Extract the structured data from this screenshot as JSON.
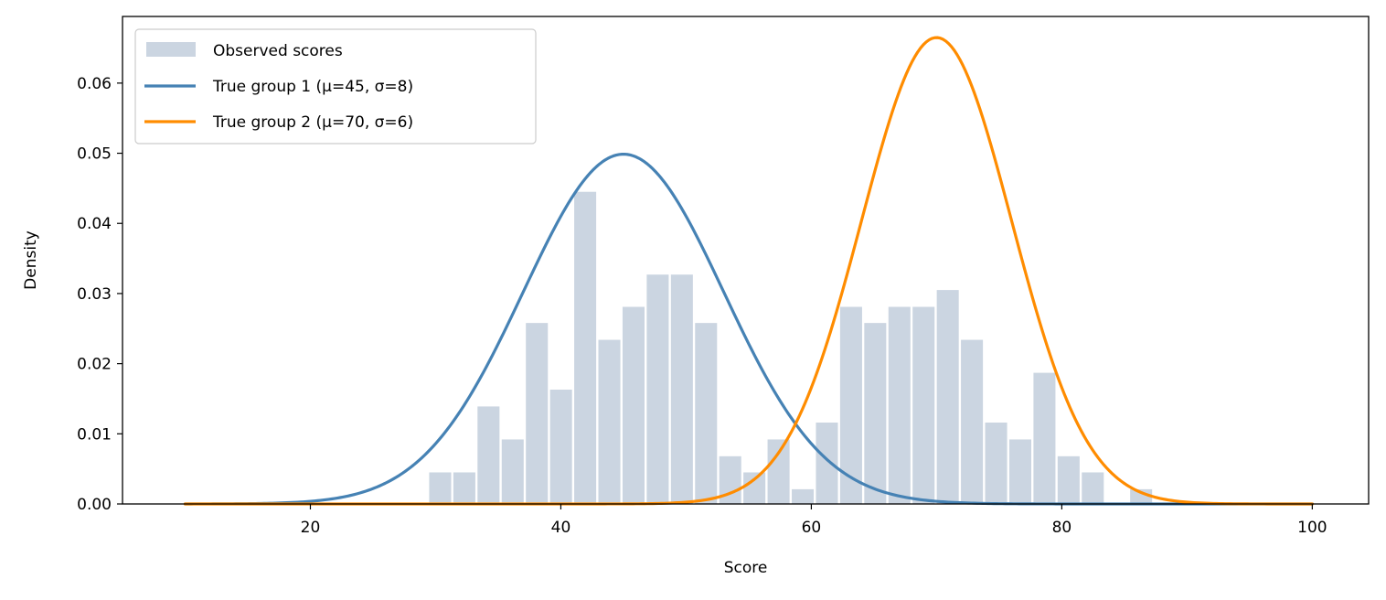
{
  "chart_data": {
    "type": "bar",
    "title": "",
    "xlabel": "Score",
    "ylabel": "Density",
    "xlim": [
      5,
      104.5
    ],
    "ylim": [
      0,
      0.0695
    ],
    "xticks": [
      20,
      40,
      60,
      80,
      100
    ],
    "yticks": [
      0.0,
      0.01,
      0.02,
      0.03,
      0.04,
      0.05,
      0.06
    ],
    "grid": false,
    "legend_position": "top-left",
    "histogram": {
      "name": "Observed scores",
      "color": "#cbd5e1",
      "bin_start": 29.4,
      "bin_width": 1.93,
      "values": [
        0.0045,
        0.0045,
        0.0139,
        0.0092,
        0.0258,
        0.0163,
        0.0445,
        0.0234,
        0.0281,
        0.0327,
        0.0327,
        0.0258,
        0.0068,
        0.0045,
        0.0092,
        0.0021,
        0.0116,
        0.0281,
        0.0258,
        0.0281,
        0.0281,
        0.0305,
        0.0234,
        0.0116,
        0.0092,
        0.0187,
        0.0068,
        0.0045,
        0.0,
        0.0021
      ]
    },
    "series": [
      {
        "name": "True group 1 (μ=45, σ=8)",
        "type": "line",
        "color": "#4682b4",
        "mu": 45,
        "sigma": 8,
        "weight": 1.0
      },
      {
        "name": "True group 2 (μ=70, σ=6)",
        "type": "line",
        "color": "#ff8c00",
        "mu": 70,
        "sigma": 6,
        "weight": 1.0
      }
    ],
    "curve_x_range": [
      10,
      100
    ]
  }
}
